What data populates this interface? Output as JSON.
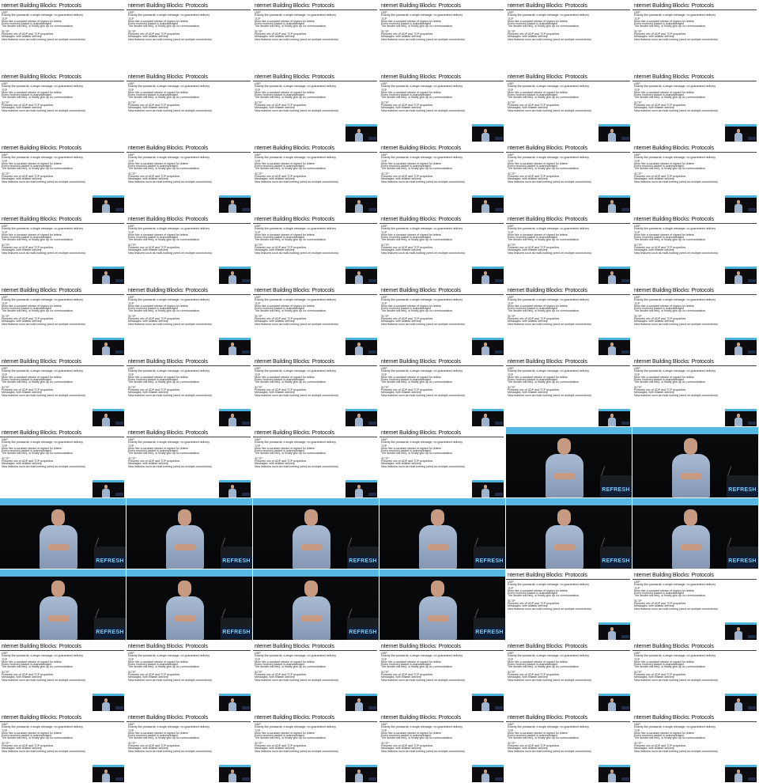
{
  "slide": {
    "title": "nternet Building Blocks: Protocols",
    "lines": [
      {
        "text": "UDP",
        "top": 0
      },
      {
        "text": "Exactly like postcards: a single message, no guaranteed delivery",
        "top": 1
      },
      {
        "text": "TCP",
        "top": 2
      },
      {
        "text": "More like a constant stream of signed for letters",
        "top": 3
      },
      {
        "text": "Every received packet is acknowledged",
        "top": 4
      },
      {
        "text": "The sender will retry, or finally give up on communication",
        "top": 5
      },
      {
        "text": "SCTP",
        "top": 6
      },
      {
        "text": "Powerful mix of UDP and TCP properties",
        "top": 7
      },
      {
        "text": "Messages, with reliable delivery",
        "top": 8
      },
      {
        "text": "New features such as multi-homing (send on multiple connections)",
        "top": 9
      }
    ]
  },
  "camera": {
    "sign_text": "REFRESH"
  },
  "grid": {
    "columns": 6,
    "rows": 11,
    "cells": [
      "slide",
      "slide",
      "slide",
      "slide",
      "slide",
      "slide",
      "slide",
      "slide",
      "slide",
      "slide",
      "slide",
      "slide",
      "slide",
      "slide",
      "slide",
      "slide",
      "slide",
      "slide",
      "slide",
      "slide",
      "slide",
      "slide",
      "slide",
      "slide",
      "slide",
      "slide",
      "slide",
      "slide",
      "slide",
      "slide",
      "slide",
      "slide",
      "slide",
      "slide",
      "slide",
      "slide",
      "slide",
      "slide",
      "slide",
      "slide",
      "camera",
      "camera",
      "camera",
      "camera",
      "camera",
      "camera",
      "camera",
      "camera",
      "camera",
      "camera",
      "camera",
      "camera",
      "slide",
      "slide",
      "slide",
      "slide",
      "slide",
      "slide",
      "slide",
      "slide",
      "slide",
      "slide",
      "slide",
      "slide",
      "slide",
      "slide"
    ],
    "pip_visible": [
      false,
      false,
      false,
      false,
      false,
      false,
      false,
      false,
      true,
      true,
      true,
      true,
      true,
      true,
      true,
      true,
      true,
      true,
      true,
      true,
      true,
      true,
      true,
      true,
      true,
      true,
      true,
      true,
      true,
      true,
      true,
      true,
      true,
      true,
      true,
      true,
      true,
      true,
      true,
      true,
      false,
      false,
      false,
      false,
      false,
      false,
      false,
      false,
      false,
      false,
      false,
      false,
      true,
      true,
      true,
      true,
      true,
      true,
      true,
      true,
      true,
      true,
      true,
      true,
      true,
      true
    ]
  },
  "colors": {
    "accent_band": "#57b9e3",
    "stage_dark": "#07080a",
    "shirt": "#9fb3cf"
  }
}
